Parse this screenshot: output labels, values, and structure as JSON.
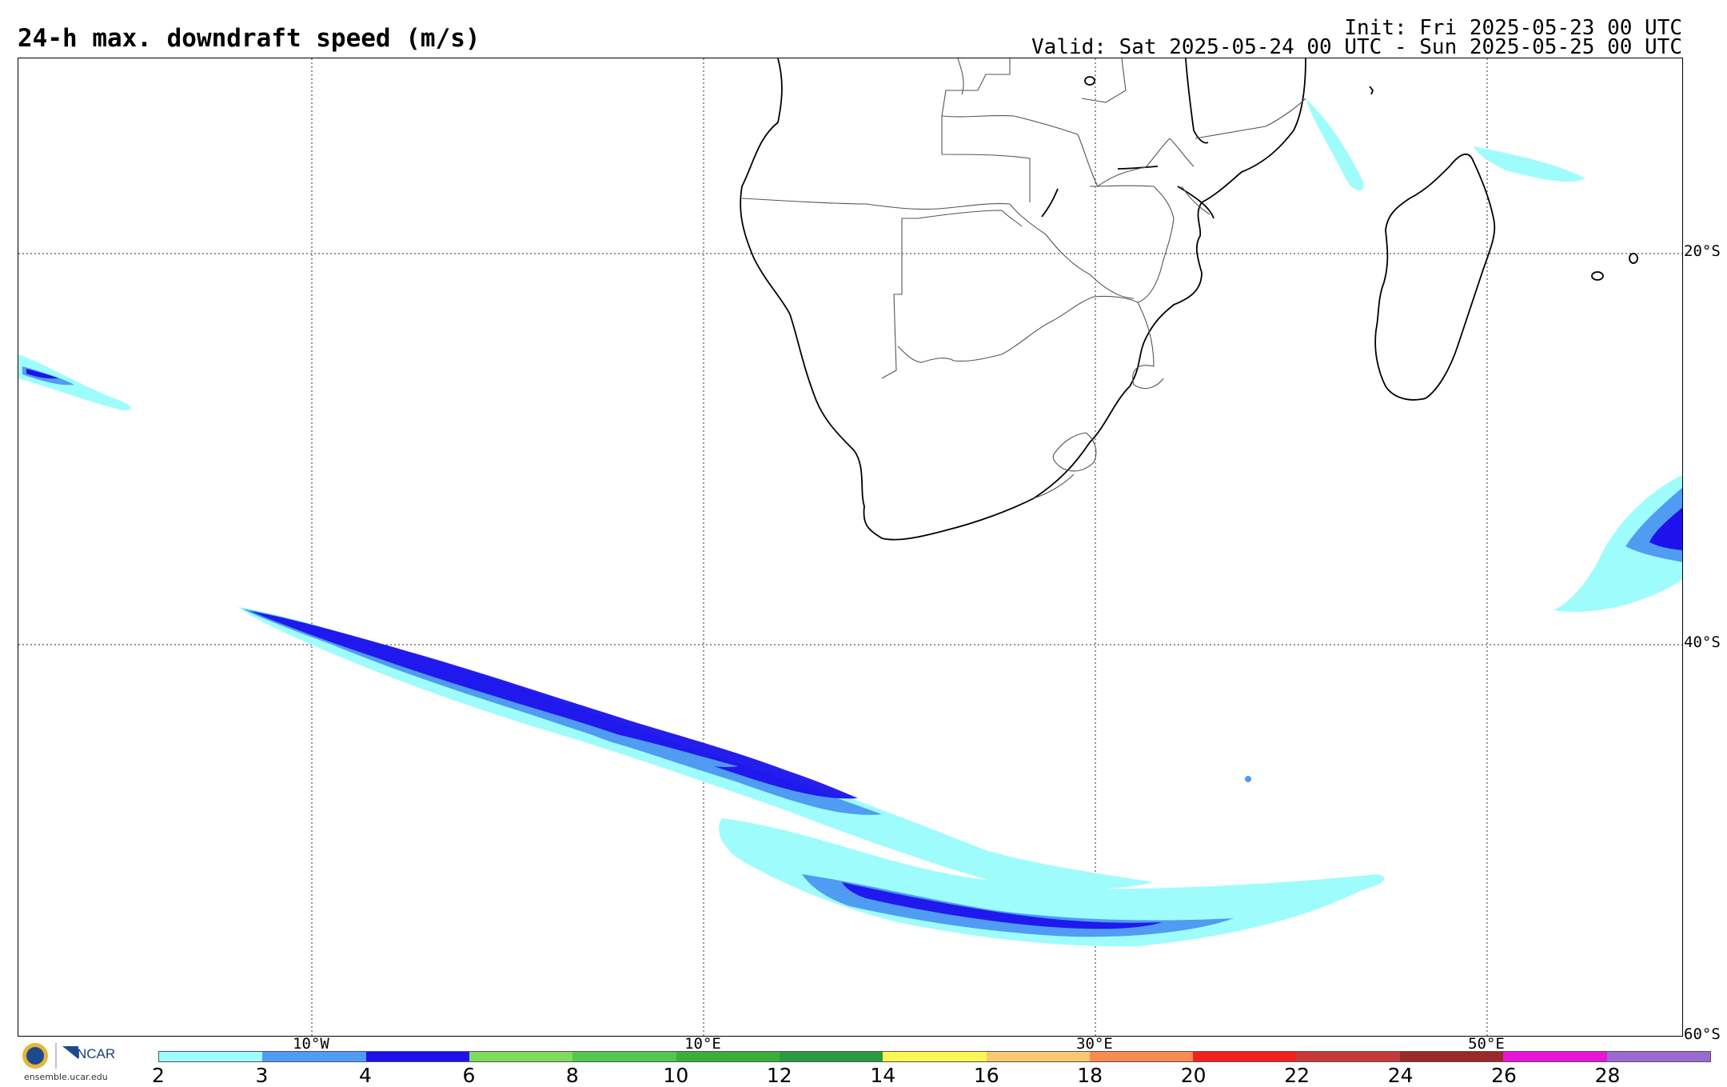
{
  "header": {
    "title": "24-h max. downdraft speed (m/s)",
    "init": "Init: Fri 2025-05-23 00 UTC",
    "valid": "Valid: Sat 2025-05-24 00 UTC - Sun 2025-05-25 00 UTC"
  },
  "map": {
    "lat_labels": [
      "20°S",
      "40°S",
      "60°S"
    ],
    "lon_labels": [
      "10°W",
      "10°E",
      "30°E",
      "50°E"
    ]
  },
  "colorbar": {
    "ticks": [
      "2",
      "3",
      "4",
      "6",
      "8",
      "10",
      "12",
      "14",
      "16",
      "18",
      "20",
      "22",
      "24",
      "26",
      "28"
    ],
    "colors": [
      "#9ffcfc",
      "#4f9cf2",
      "#1e12ec",
      "#7edb5c",
      "#50c850",
      "#39b039",
      "#2a9a45",
      "#fbf653",
      "#fbc770",
      "#f98b52",
      "#f22020",
      "#c83a3a",
      "#9a2a2a",
      "#e815d6",
      "#9a6ad2"
    ]
  },
  "logo": {
    "org": "NCAR",
    "url": "ensemble.ucar.edu"
  },
  "shading_colors": {
    "light": "#9ffcfc",
    "medium": "#4f9cf2",
    "dark": "#1e12ec"
  }
}
